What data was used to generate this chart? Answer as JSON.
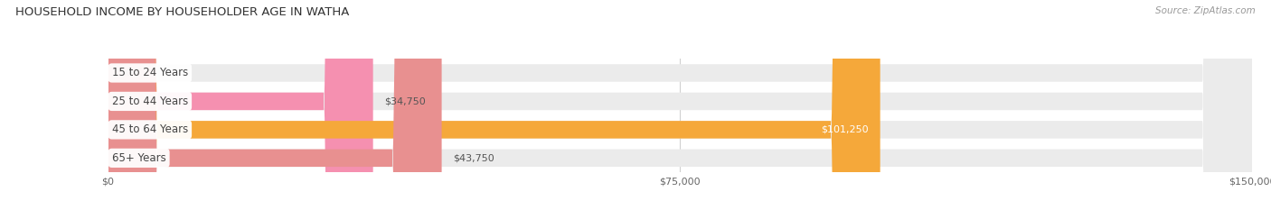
{
  "title": "HOUSEHOLD INCOME BY HOUSEHOLDER AGE IN WATHA",
  "source": "Source: ZipAtlas.com",
  "categories": [
    "15 to 24 Years",
    "25 to 44 Years",
    "45 to 64 Years",
    "65+ Years"
  ],
  "values": [
    0,
    34750,
    101250,
    43750
  ],
  "bar_colors": [
    "#b0b3e0",
    "#f590b0",
    "#f5a83a",
    "#e89090"
  ],
  "label_colors_inside": [
    "#ffffff",
    "#ffffff",
    "#ffffff",
    "#ffffff"
  ],
  "bg_bar_color": "#ebebeb",
  "xlim": [
    0,
    150000
  ],
  "xticks": [
    0,
    75000,
    150000
  ],
  "xtick_labels": [
    "$0",
    "$75,000",
    "$150,000"
  ],
  "bar_height": 0.62,
  "figsize": [
    14.06,
    2.33
  ],
  "dpi": 100,
  "value_label_inside_threshold": 90000
}
